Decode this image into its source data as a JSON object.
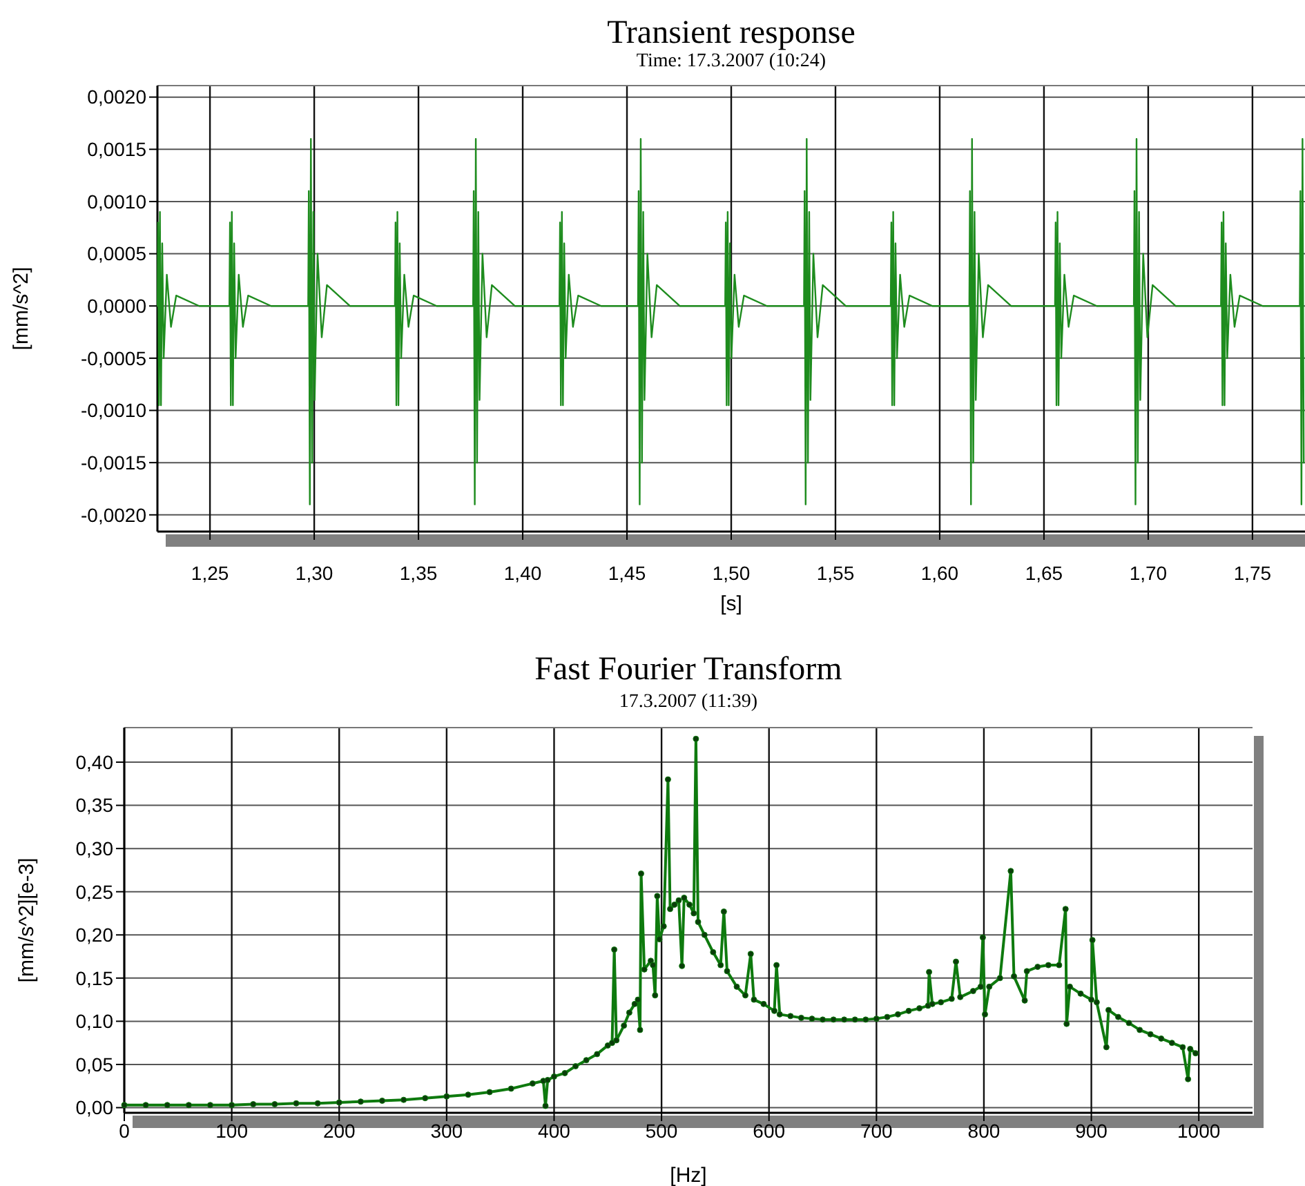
{
  "chart_data": [
    {
      "type": "line",
      "title": "Transient response",
      "subtitle": "Time: 17.3.2007 (10:24)",
      "xlabel": "[s]",
      "ylabel": "[mm/s^2]",
      "grid": true,
      "marker": "none",
      "line_style": "solid",
      "xlim": [
        1.2248,
        1.7752
      ],
      "ylim": [
        -0.00216,
        0.00211
      ],
      "xticks": [
        {
          "value": 1.25,
          "label": "1,25"
        },
        {
          "value": 1.3,
          "label": "1,30"
        },
        {
          "value": 1.35,
          "label": "1,35"
        },
        {
          "value": 1.4,
          "label": "1,40"
        },
        {
          "value": 1.45,
          "label": "1,45"
        },
        {
          "value": 1.5,
          "label": "1,50"
        },
        {
          "value": 1.55,
          "label": "1,55"
        },
        {
          "value": 1.6,
          "label": "1,60"
        },
        {
          "value": 1.65,
          "label": "1,65"
        },
        {
          "value": 1.7,
          "label": "1,70"
        },
        {
          "value": 1.75,
          "label": "1,75"
        }
      ],
      "yticks": [
        {
          "value": 0.002,
          "label": "0,0020"
        },
        {
          "value": 0.0015,
          "label": "0,0015"
        },
        {
          "value": 0.001,
          "label": "0,0010"
        },
        {
          "value": 0.0005,
          "label": "0,0005"
        },
        {
          "value": 0,
          "label": "0,0000"
        },
        {
          "value": -0.0005,
          "label": "-0,0005"
        },
        {
          "value": -0.001,
          "label": "-0,0010"
        },
        {
          "value": -0.0015,
          "label": "-0,0015"
        },
        {
          "value": -0.002,
          "label": "-0,0020"
        }
      ],
      "series": [
        {
          "color": "#1e8c1e",
          "x": [
            1.2249,
            1.2251,
            1.2255,
            1.226,
            1.2265,
            1.2271,
            1.2278,
            1.2293,
            1.2313,
            1.2338,
            1.2448,
            1.2593,
            1.2596,
            1.26,
            1.2605,
            1.261,
            1.2616,
            1.2623,
            1.2638,
            1.2658,
            1.2683,
            1.2793,
            1.2971,
            1.2974,
            1.2979,
            1.2984,
            1.299,
            1.2996,
            1.3002,
            1.3016,
            1.3036,
            1.3061,
            1.3171,
            1.3387,
            1.339,
            1.3394,
            1.3399,
            1.3404,
            1.341,
            1.3417,
            1.3432,
            1.3452,
            1.3477,
            1.3587,
            1.3762,
            1.3765,
            1.377,
            1.3775,
            1.3781,
            1.3787,
            1.3793,
            1.3807,
            1.3827,
            1.3852,
            1.3962,
            1.4176,
            1.4179,
            1.4183,
            1.4188,
            1.4193,
            1.4199,
            1.4206,
            1.4221,
            1.4241,
            1.4266,
            1.4376,
            1.4553,
            1.4556,
            1.4561,
            1.4566,
            1.4572,
            1.4578,
            1.4584,
            1.4598,
            1.4618,
            1.4643,
            1.4753,
            1.4971,
            1.4974,
            1.4978,
            1.4983,
            1.4988,
            1.4994,
            1.5001,
            1.5016,
            1.5036,
            1.5061,
            1.5171,
            1.5349,
            1.5352,
            1.5357,
            1.5362,
            1.5368,
            1.5374,
            1.538,
            1.5394,
            1.5414,
            1.5439,
            1.5549,
            1.5765,
            1.5768,
            1.5772,
            1.5777,
            1.5782,
            1.5788,
            1.5795,
            1.581,
            1.583,
            1.5855,
            1.5965,
            1.6142,
            1.6145,
            1.615,
            1.6155,
            1.6161,
            1.6167,
            1.6173,
            1.6187,
            1.6207,
            1.6232,
            1.6342,
            1.6553,
            1.6556,
            1.656,
            1.6565,
            1.657,
            1.6576,
            1.6583,
            1.6598,
            1.6618,
            1.6643,
            1.6753,
            1.6931,
            1.6934,
            1.6939,
            1.6944,
            1.695,
            1.6956,
            1.6962,
            1.6976,
            1.6996,
            1.7021,
            1.7131,
            1.7349,
            1.7352,
            1.7356,
            1.7361,
            1.7366,
            1.7372,
            1.7379,
            1.7394,
            1.7414,
            1.7439,
            1.7549,
            1.7727,
            1.773,
            1.7735,
            1.774,
            1.7746
          ],
          "values": [
            0,
            0.0008,
            -0.00095,
            0.0009,
            -0.00095,
            0.0006,
            -0.0005,
            0.0003,
            -0.0002,
            0.0001,
            0,
            0,
            0.0008,
            -0.00095,
            0.0009,
            -0.00095,
            0.0006,
            -0.0005,
            0.0003,
            -0.0002,
            0.0001,
            0,
            0,
            0.0011,
            -0.0019,
            0.0016,
            -0.0015,
            0.0009,
            -0.0009,
            0.0005,
            -0.0003,
            0.0002,
            0,
            0,
            0.0008,
            -0.00095,
            0.0009,
            -0.00095,
            0.0006,
            -0.0005,
            0.0003,
            -0.0002,
            0.0001,
            0,
            0,
            0.0011,
            -0.0019,
            0.0016,
            -0.0015,
            0.0009,
            -0.0009,
            0.0005,
            -0.0003,
            0.0002,
            0,
            0,
            0.0008,
            -0.00095,
            0.0009,
            -0.00095,
            0.0006,
            -0.0005,
            0.0003,
            -0.0002,
            0.0001,
            0,
            0,
            0.0011,
            -0.0019,
            0.0016,
            -0.0015,
            0.0009,
            -0.0009,
            0.0005,
            -0.0003,
            0.0002,
            0,
            0,
            0.0008,
            -0.00095,
            0.0009,
            -0.00095,
            0.0006,
            -0.0005,
            0.0003,
            -0.0002,
            0.0001,
            0,
            0,
            0.0011,
            -0.0019,
            0.0016,
            -0.0015,
            0.0009,
            -0.0009,
            0.0005,
            -0.0003,
            0.0002,
            0,
            0,
            0.0008,
            -0.00095,
            0.0009,
            -0.00095,
            0.0006,
            -0.0005,
            0.0003,
            -0.0002,
            0.0001,
            0,
            0,
            0.0011,
            -0.0019,
            0.0016,
            -0.0015,
            0.0009,
            -0.0009,
            0.0005,
            -0.0003,
            0.0002,
            0,
            0,
            0.0008,
            -0.00095,
            0.0009,
            -0.00095,
            0.0006,
            -0.0005,
            0.0003,
            -0.0002,
            0.0001,
            0,
            0,
            0.0011,
            -0.0019,
            0.0016,
            -0.0015,
            0.0009,
            -0.0009,
            0.0005,
            -0.0003,
            0.0002,
            0,
            0,
            0.0008,
            -0.00095,
            0.0009,
            -0.00095,
            0.0006,
            -0.0005,
            0.0003,
            -0.0002,
            0.0001,
            0,
            0,
            0.0011,
            -0.0019,
            0.0016,
            -0.0015
          ]
        }
      ]
    },
    {
      "type": "line",
      "title": "Fast Fourier Transform",
      "subtitle": "17.3.2007 (11:39)",
      "xlabel": "[Hz]",
      "ylabel": "[mm/s^2][e-3]",
      "grid": true,
      "marker": "circle",
      "line_style": "solid",
      "xlim": [
        0,
        1050
      ],
      "ylim": [
        -0.006,
        0.44
      ],
      "xticks": [
        0,
        100,
        200,
        300,
        400,
        500,
        600,
        700,
        800,
        900,
        1000
      ],
      "yticks": [
        {
          "value": 0,
          "label": "0,00"
        },
        {
          "value": 0.05,
          "label": "0,05"
        },
        {
          "value": 0.1,
          "label": "0,10"
        },
        {
          "value": 0.15,
          "label": "0,15"
        },
        {
          "value": 0.2,
          "label": "0,20"
        },
        {
          "value": 0.25,
          "label": "0,25"
        },
        {
          "value": 0.3,
          "label": "0,30"
        },
        {
          "value": 0.35,
          "label": "0,35"
        },
        {
          "value": 0.4,
          "label": "0,40"
        }
      ],
      "series": [
        {
          "color": "#0e7a0e",
          "x": [
            0,
            20,
            40,
            60,
            80,
            100,
            120,
            140,
            160,
            180,
            200,
            220,
            240,
            260,
            280,
            300,
            320,
            340,
            360,
            380,
            390,
            392,
            394,
            400,
            410,
            420,
            430,
            440,
            450,
            454,
            456,
            458,
            465,
            470,
            475,
            478,
            480,
            481,
            484,
            490,
            492,
            494,
            496,
            498,
            502,
            506,
            508,
            512,
            516,
            519,
            521,
            526,
            530,
            532,
            534,
            540,
            548,
            555,
            558,
            561,
            570,
            578,
            583,
            586,
            595,
            605,
            607,
            610,
            620,
            630,
            640,
            650,
            660,
            670,
            680,
            690,
            700,
            710,
            720,
            730,
            740,
            748,
            749,
            752,
            760,
            770,
            774,
            778,
            790,
            797,
            799,
            801,
            805,
            815,
            825,
            828,
            838,
            840,
            850,
            860,
            870,
            876,
            877,
            880,
            890,
            900,
            901,
            905,
            914,
            916,
            925,
            935,
            945,
            955,
            965,
            975,
            985,
            990,
            992,
            997
          ],
          "values": [
            0.003,
            0.003,
            0.003,
            0.003,
            0.003,
            0.003,
            0.004,
            0.004,
            0.005,
            0.005,
            0.006,
            0.007,
            0.008,
            0.009,
            0.011,
            0.013,
            0.015,
            0.018,
            0.022,
            0.028,
            0.031,
            0.002,
            0.032,
            0.036,
            0.04,
            0.048,
            0.055,
            0.062,
            0.072,
            0.075,
            0.183,
            0.078,
            0.095,
            0.11,
            0.12,
            0.125,
            0.09,
            0.271,
            0.16,
            0.17,
            0.165,
            0.13,
            0.245,
            0.195,
            0.21,
            0.38,
            0.23,
            0.235,
            0.24,
            0.164,
            0.243,
            0.235,
            0.225,
            0.427,
            0.215,
            0.2,
            0.18,
            0.165,
            0.227,
            0.158,
            0.14,
            0.13,
            0.178,
            0.125,
            0.12,
            0.112,
            0.165,
            0.108,
            0.106,
            0.104,
            0.103,
            0.102,
            0.102,
            0.102,
            0.102,
            0.102,
            0.103,
            0.105,
            0.108,
            0.112,
            0.115,
            0.118,
            0.157,
            0.12,
            0.122,
            0.126,
            0.169,
            0.128,
            0.135,
            0.14,
            0.197,
            0.108,
            0.14,
            0.15,
            0.274,
            0.152,
            0.124,
            0.158,
            0.163,
            0.165,
            0.165,
            0.23,
            0.097,
            0.14,
            0.132,
            0.125,
            0.194,
            0.122,
            0.07,
            0.113,
            0.105,
            0.098,
            0.09,
            0.085,
            0.08,
            0.075,
            0.07,
            0.033,
            0.068,
            0.063
          ]
        }
      ]
    }
  ]
}
